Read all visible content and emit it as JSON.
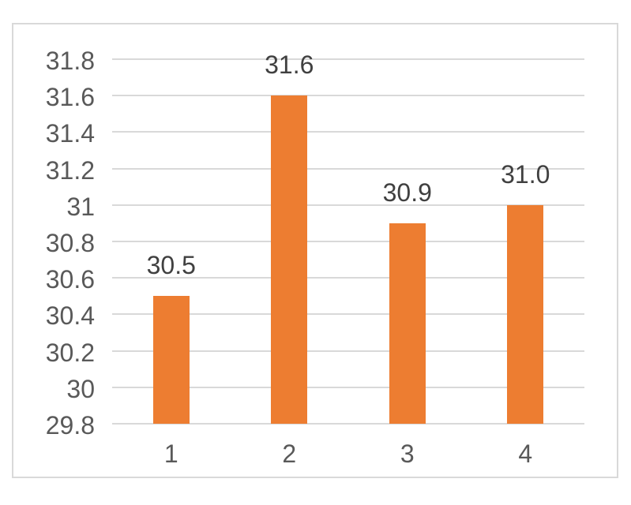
{
  "chart_data": {
    "type": "bar",
    "title": "",
    "xlabel": "",
    "ylabel": "",
    "categories": [
      "1",
      "2",
      "3",
      "4"
    ],
    "values": [
      30.5,
      31.6,
      30.9,
      31.0
    ],
    "data_labels": [
      "30.5",
      "31.6",
      "30.9",
      "31.0"
    ],
    "y_ticks": [
      "31.8",
      "31.6",
      "31.4",
      "31.2",
      "31",
      "30.8",
      "30.6",
      "30.4",
      "30.2",
      "30",
      "29.8"
    ],
    "y_tick_values": [
      31.8,
      31.6,
      31.4,
      31.2,
      31.0,
      30.8,
      30.6,
      30.4,
      30.2,
      30.0,
      29.8
    ],
    "ylim": [
      29.8,
      31.8
    ],
    "tick_step": 0.2,
    "grid": "horizontal",
    "legend": "none",
    "colors": {
      "bar": "#ED7D31",
      "gridline": "#D9D9D9",
      "axis_label": "#595959",
      "data_label": "#404040",
      "frame_border": "#D9D9D9",
      "background": "#FFFFFF"
    }
  }
}
